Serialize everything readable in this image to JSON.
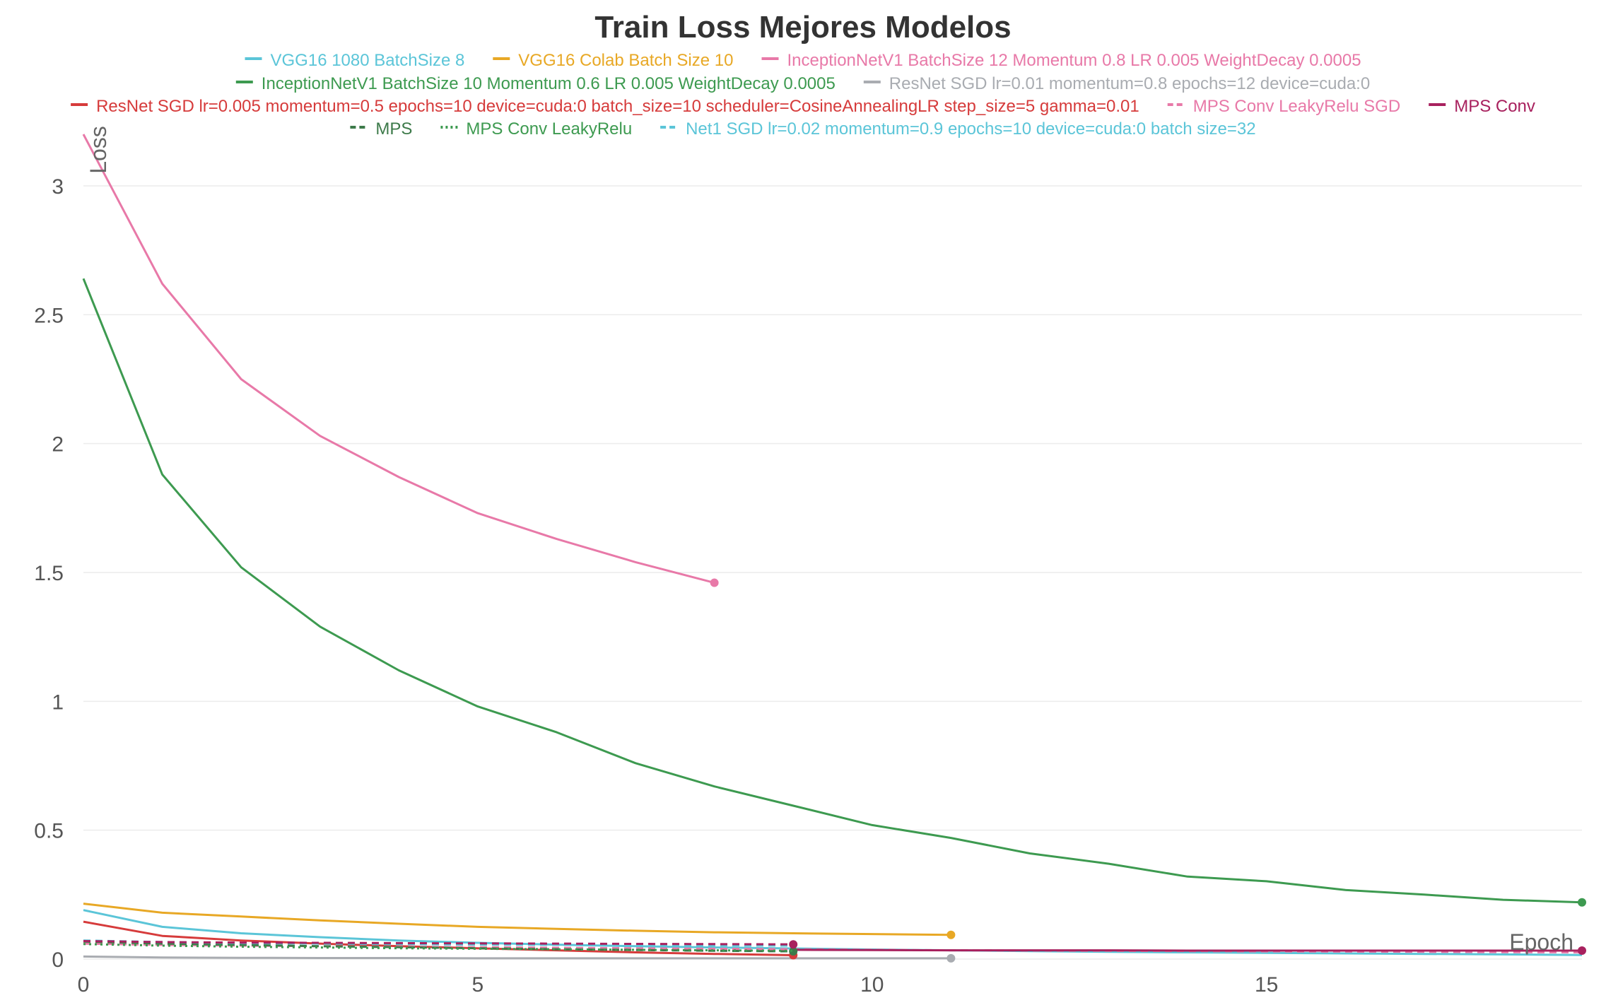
{
  "chart_data": {
    "type": "line",
    "title": "Train Loss Mejores Modelos",
    "xlabel": "Epoch",
    "ylabel": "Loss",
    "xlim": [
      0,
      19
    ],
    "ylim": [
      0,
      3.2
    ],
    "xticks": [
      0,
      5,
      10,
      15
    ],
    "yticks": [
      0,
      0.5,
      1,
      1.5,
      2,
      2.5,
      3
    ],
    "grid": true,
    "legend_position": "top",
    "series": [
      {
        "name": "VGG16 1080 BatchSize 8",
        "color": "#5bc5d8",
        "dash": "solid",
        "end_marker": false,
        "x": [
          0,
          1,
          2,
          3,
          4,
          5,
          6,
          7,
          8,
          9,
          10,
          11,
          12,
          13,
          14,
          15,
          16,
          17,
          18,
          19
        ],
        "y": [
          0.19,
          0.125,
          0.1,
          0.085,
          0.072,
          0.063,
          0.056,
          0.05,
          0.045,
          0.041,
          0.037,
          0.034,
          0.031,
          0.028,
          0.026,
          0.024,
          0.022,
          0.02,
          0.018,
          0.016
        ]
      },
      {
        "name": "VGG16 Colab Batch Size 10",
        "color": "#e8a825",
        "dash": "solid",
        "end_marker": true,
        "x": [
          0,
          1,
          2,
          3,
          4,
          5,
          6,
          7,
          8,
          9,
          10,
          11
        ],
        "y": [
          0.215,
          0.18,
          0.165,
          0.15,
          0.137,
          0.125,
          0.117,
          0.11,
          0.104,
          0.1,
          0.097,
          0.094
        ]
      },
      {
        "name": "InceptionNetV1 BatchSize 12 Momentum 0.8 LR 0.005 WeightDecay 0.0005",
        "color": "#e879a8",
        "dash": "solid",
        "end_marker": true,
        "x": [
          0,
          1,
          2,
          3,
          4,
          5,
          6,
          7,
          8
        ],
        "y": [
          3.2,
          2.62,
          2.25,
          2.03,
          1.87,
          1.73,
          1.63,
          1.54,
          1.46
        ]
      },
      {
        "name": "InceptionNetV1 BatchSize 10 Momentum 0.6 LR 0.005 WeightDecay 0.0005",
        "color": "#3d9a50",
        "dash": "solid",
        "end_marker": true,
        "x": [
          0,
          1,
          2,
          3,
          4,
          5,
          6,
          7,
          8,
          9,
          10,
          11,
          12,
          13,
          14,
          15,
          16,
          17,
          18,
          19
        ],
        "y": [
          2.64,
          1.88,
          1.52,
          1.29,
          1.12,
          0.98,
          0.88,
          0.76,
          0.67,
          0.595,
          0.52,
          0.47,
          0.41,
          0.37,
          0.32,
          0.302,
          0.268,
          0.25,
          0.23,
          0.22
        ]
      },
      {
        "name": "ResNet SGD lr=0.01 momentum=0.8 epochs=12 device=cuda:0",
        "color": "#a9acb1",
        "dash": "solid",
        "end_marker": true,
        "x": [
          0,
          1,
          2,
          3,
          4,
          5,
          6,
          7,
          8,
          9,
          10,
          11
        ],
        "y": [
          0.01,
          0.006,
          0.005,
          0.004,
          0.004,
          0.003,
          0.003,
          0.003,
          0.003,
          0.003,
          0.003,
          0.003
        ]
      },
      {
        "name": "ResNet SGD lr=0.005 momentum=0.5 epochs=10 device=cuda:0 batch_size=10 scheduler=CosineAnnealingLR step_size=5 gamma=0.01",
        "color": "#d63b3b",
        "dash": "solid",
        "end_marker": true,
        "x": [
          0,
          1,
          2,
          3,
          4,
          5,
          6,
          7,
          8,
          9
        ],
        "y": [
          0.145,
          0.09,
          0.072,
          0.06,
          0.05,
          0.042,
          0.034,
          0.026,
          0.02,
          0.015
        ]
      },
      {
        "name": "MPS Conv LeakyRelu SGD",
        "color": "#e879a8",
        "dash": "dashed",
        "end_marker": false,
        "x": [
          0,
          1,
          2,
          3,
          4,
          5,
          6,
          7,
          8,
          9,
          10,
          11,
          12,
          13,
          14,
          15,
          16,
          17,
          18,
          19
        ],
        "y": [
          0.06,
          0.055,
          0.052,
          0.05,
          0.048,
          0.046,
          0.044,
          0.042,
          0.04,
          0.038,
          0.036,
          0.034,
          0.033,
          0.032,
          0.031,
          0.03,
          0.029,
          0.028,
          0.027,
          0.026
        ]
      },
      {
        "name": "MPS Conv",
        "color": "#a8215e",
        "dash": "solid",
        "end_marker": true,
        "x": [
          9,
          10,
          11,
          12,
          13,
          14,
          15,
          16,
          17,
          18,
          19
        ],
        "y": [
          0.036,
          0.035,
          0.034,
          0.034,
          0.034,
          0.033,
          0.033,
          0.033,
          0.033,
          0.033,
          0.033
        ]
      },
      {
        "name": "MPS",
        "color": "#3d7a4a",
        "dash": "dashed",
        "end_marker": true,
        "x": [
          0,
          1,
          2,
          3,
          4,
          5,
          6,
          7,
          8,
          9
        ],
        "y": [
          0.068,
          0.06,
          0.055,
          0.05,
          0.046,
          0.042,
          0.038,
          0.035,
          0.032,
          0.03
        ]
      },
      {
        "name": "MPS Conv LeakyRelu",
        "color": "#3d9a50",
        "dash": "dotted",
        "end_marker": false,
        "x": [
          0,
          1,
          2,
          3,
          4,
          5,
          6,
          7,
          8,
          9
        ],
        "y": [
          0.058,
          0.052,
          0.048,
          0.045,
          0.042,
          0.04,
          0.038,
          0.036,
          0.034,
          0.032
        ]
      },
      {
        "name": "Net1 SGD lr=0.02 momentum=0.9 epochs=10 device=cuda:0 batch  size=32",
        "color": "#5bc5d8",
        "dash": "dashed",
        "end_marker": false,
        "x": [
          0,
          1,
          2,
          3,
          4,
          5,
          6,
          7,
          8,
          9
        ],
        "y": [
          0.072,
          0.066,
          0.062,
          0.06,
          0.058,
          0.056,
          0.055,
          0.054,
          0.053,
          0.052
        ]
      },
      {
        "name": "",
        "color": "#a8215e",
        "dash": "dashed",
        "end_marker": true,
        "x": [
          0,
          1,
          2,
          3,
          4,
          5,
          6,
          7,
          8,
          9
        ],
        "y": [
          0.07,
          0.066,
          0.064,
          0.063,
          0.062,
          0.061,
          0.06,
          0.059,
          0.058,
          0.057
        ]
      }
    ],
    "legend_rows": [
      [
        0,
        1,
        2
      ],
      [
        3,
        4
      ],
      [
        5,
        6,
        7
      ],
      [
        8,
        9,
        10
      ]
    ]
  }
}
